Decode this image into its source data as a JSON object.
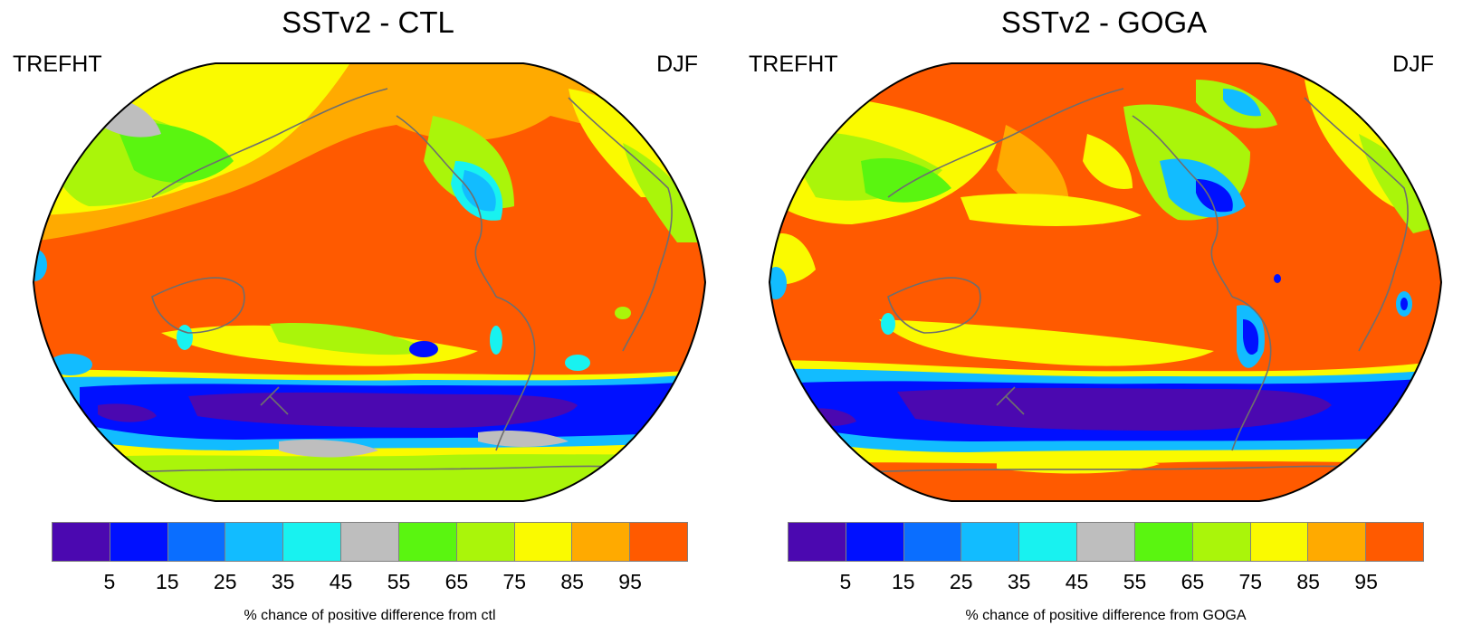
{
  "colorbar": {
    "colors": [
      "#4b08b0",
      "#0010ff",
      "#0a6eff",
      "#12bcff",
      "#18f2f0",
      "#bebebe",
      "#5af510",
      "#aaf50a",
      "#fafa00",
      "#ffaa00",
      "#ff5a00"
    ],
    "ticks": [
      "5",
      "15",
      "25",
      "35",
      "45",
      "55",
      "65",
      "75",
      "85",
      "95"
    ]
  },
  "panels": [
    {
      "title": "SSTv2 - CTL",
      "variable": "TREFHT",
      "season": "DJF",
      "caption": "% chance of positive difference from ctl"
    },
    {
      "title": "SSTv2 - GOGA",
      "variable": "TREFHT",
      "season": "DJF",
      "caption": "% chance of positive difference from GOGA"
    }
  ],
  "style": {
    "coastline_color": "#6e6e6e",
    "background_fill": "#ff5a00"
  }
}
